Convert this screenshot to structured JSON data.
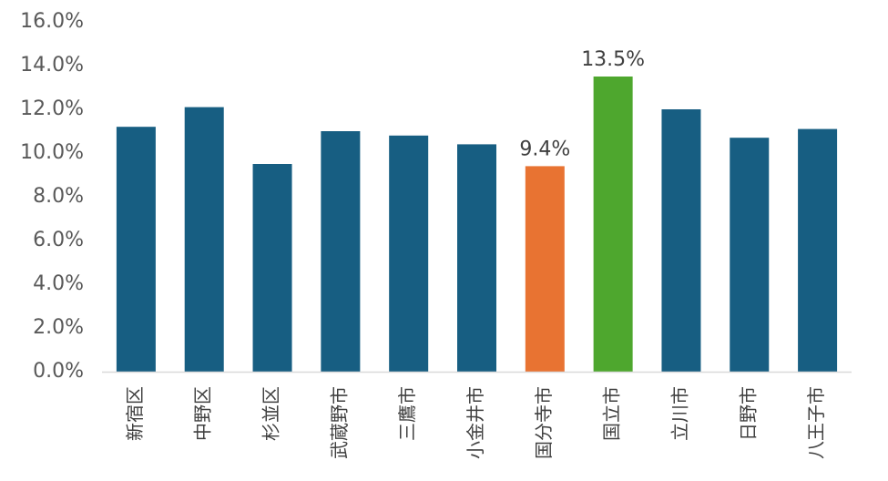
{
  "chart_data": {
    "type": "bar",
    "title": "",
    "xlabel": "",
    "ylabel": "",
    "ylim": [
      0,
      16
    ],
    "y_tick_step": 2,
    "y_tick_format": "percent_1dp",
    "grid": false,
    "legend": "none",
    "categories": [
      "新宿区",
      "中野区",
      "杉並区",
      "武蔵野市",
      "三鷹市",
      "小金井市",
      "国分寺市",
      "国立市",
      "立川市",
      "日野市",
      "八王子市"
    ],
    "values": [
      11.2,
      12.1,
      9.5,
      11.0,
      10.8,
      10.4,
      9.4,
      13.5,
      12.0,
      10.7,
      11.1
    ],
    "y_ticks": [
      "0.0%",
      "2.0%",
      "4.0%",
      "6.0%",
      "8.0%",
      "10.0%",
      "12.0%",
      "14.0%",
      "16.0%"
    ],
    "data_labels": [
      {
        "category": "国分寺市",
        "text": "9.4%"
      },
      {
        "category": "国立市",
        "text": "13.5%"
      }
    ],
    "colors": {
      "default": "#175E82",
      "highlight_low": "#E87332",
      "highlight_high": "#4EA72E",
      "axis": "#D9D9D9"
    },
    "bar_colors": [
      "default",
      "default",
      "default",
      "default",
      "default",
      "default",
      "highlight_low",
      "highlight_high",
      "default",
      "default",
      "default"
    ]
  }
}
